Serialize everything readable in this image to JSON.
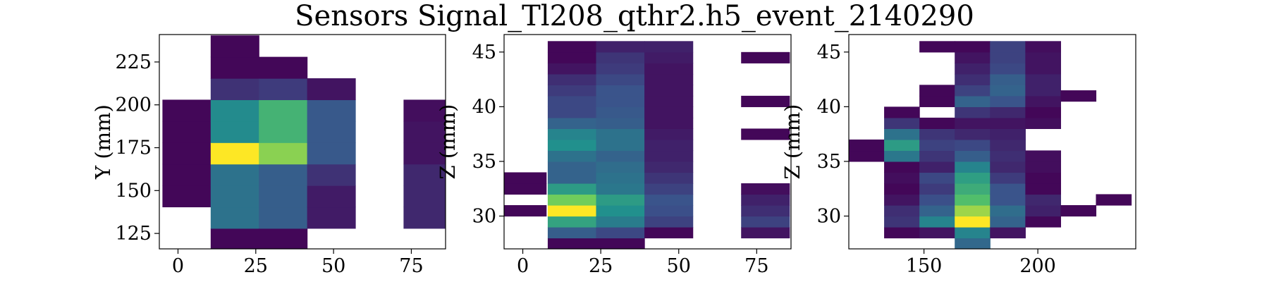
{
  "title": "Sensors Signal_Tl208_qthr2.h5_event_2140290",
  "colormap": [
    "#440154",
    "#3b528b",
    "#21908d",
    "#5dc963",
    "#fde725"
  ],
  "chart_data": [
    {
      "type": "heatmap",
      "xlabel": "",
      "ylabel": "Y (mm)",
      "xlim": [
        -6,
        86
      ],
      "ylim": [
        116,
        241
      ],
      "xticks": [
        0,
        25,
        50,
        75
      ],
      "yticks": [
        125,
        150,
        175,
        200,
        225
      ],
      "cell_w": 15.5,
      "cell_h": 12.5,
      "cells": [
        {
          "x": -5,
          "y": 140.5,
          "v": 0.02
        },
        {
          "x": -5,
          "y": 153,
          "v": 0.02
        },
        {
          "x": -5,
          "y": 165.5,
          "v": 0.02
        },
        {
          "x": -5,
          "y": 178,
          "v": 0.02
        },
        {
          "x": -5,
          "y": 190.5,
          "v": 0.02
        },
        {
          "x": 10.5,
          "y": 115.5,
          "v": 0.02
        },
        {
          "x": 10.5,
          "y": 128,
          "v": 0.38
        },
        {
          "x": 10.5,
          "y": 140.5,
          "v": 0.38
        },
        {
          "x": 10.5,
          "y": 153,
          "v": 0.38
        },
        {
          "x": 10.5,
          "y": 165.5,
          "v": 1.0
        },
        {
          "x": 10.5,
          "y": 178,
          "v": 0.48
        },
        {
          "x": 10.5,
          "y": 190.5,
          "v": 0.48
        },
        {
          "x": 10.5,
          "y": 203,
          "v": 0.15
        },
        {
          "x": 10.5,
          "y": 215.5,
          "v": 0.02
        },
        {
          "x": 10.5,
          "y": 228,
          "v": 0.02
        },
        {
          "x": 26,
          "y": 115.5,
          "v": 0.02
        },
        {
          "x": 26,
          "y": 128,
          "v": 0.3
        },
        {
          "x": 26,
          "y": 140.5,
          "v": 0.3
        },
        {
          "x": 26,
          "y": 153,
          "v": 0.3
        },
        {
          "x": 26,
          "y": 165.5,
          "v": 0.82
        },
        {
          "x": 26,
          "y": 178,
          "v": 0.65
        },
        {
          "x": 26,
          "y": 190.5,
          "v": 0.65
        },
        {
          "x": 26,
          "y": 203,
          "v": 0.18
        },
        {
          "x": 26,
          "y": 215.5,
          "v": 0.02
        },
        {
          "x": 41.5,
          "y": 128,
          "v": 0.08
        },
        {
          "x": 41.5,
          "y": 140.5,
          "v": 0.08
        },
        {
          "x": 41.5,
          "y": 153,
          "v": 0.15
        },
        {
          "x": 41.5,
          "y": 165.5,
          "v": 0.28
        },
        {
          "x": 41.5,
          "y": 178,
          "v": 0.28
        },
        {
          "x": 41.5,
          "y": 190.5,
          "v": 0.28
        },
        {
          "x": 41.5,
          "y": 203,
          "v": 0.06
        },
        {
          "x": 72.5,
          "y": 128,
          "v": 0.12
        },
        {
          "x": 72.5,
          "y": 140.5,
          "v": 0.12
        },
        {
          "x": 72.5,
          "y": 153,
          "v": 0.12
        },
        {
          "x": 72.5,
          "y": 165.5,
          "v": 0.06
        },
        {
          "x": 72.5,
          "y": 178,
          "v": 0.06
        },
        {
          "x": 72.5,
          "y": 190.5,
          "v": 0.04
        }
      ]
    },
    {
      "type": "heatmap",
      "xlabel": "",
      "ylabel": "Z (mm)",
      "xlim": [
        -6,
        86
      ],
      "ylim": [
        27,
        46.6
      ],
      "xticks": [
        0,
        25,
        50,
        75
      ],
      "yticks": [
        30,
        35,
        40,
        45
      ],
      "cell_w": 15.5,
      "cell_h": 1,
      "cells": [
        {
          "x": -8,
          "y": 30,
          "v": 0.02
        },
        {
          "x": -8,
          "y": 32,
          "v": 0.02
        },
        {
          "x": -8,
          "y": 33,
          "v": 0.02
        },
        {
          "x": 8,
          "y": 27,
          "v": 0.02
        },
        {
          "x": 8,
          "y": 28,
          "v": 0.3
        },
        {
          "x": 8,
          "y": 29,
          "v": 0.58
        },
        {
          "x": 8,
          "y": 30,
          "v": 1.0
        },
        {
          "x": 8,
          "y": 31,
          "v": 0.78
        },
        {
          "x": 8,
          "y": 32,
          "v": 0.55
        },
        {
          "x": 8,
          "y": 33,
          "v": 0.32
        },
        {
          "x": 8,
          "y": 34,
          "v": 0.32
        },
        {
          "x": 8,
          "y": 35,
          "v": 0.38
        },
        {
          "x": 8,
          "y": 36,
          "v": 0.5
        },
        {
          "x": 8,
          "y": 37,
          "v": 0.45
        },
        {
          "x": 8,
          "y": 38,
          "v": 0.32
        },
        {
          "x": 8,
          "y": 39,
          "v": 0.22
        },
        {
          "x": 8,
          "y": 40,
          "v": 0.22
        },
        {
          "x": 8,
          "y": 41,
          "v": 0.18
        },
        {
          "x": 8,
          "y": 42,
          "v": 0.14
        },
        {
          "x": 8,
          "y": 43,
          "v": 0.06
        },
        {
          "x": 8,
          "y": 44,
          "v": 0.02
        },
        {
          "x": 8,
          "y": 45,
          "v": 0.02
        },
        {
          "x": 23.5,
          "y": 27,
          "v": 0.02
        },
        {
          "x": 23.5,
          "y": 28,
          "v": 0.22
        },
        {
          "x": 23.5,
          "y": 29,
          "v": 0.42
        },
        {
          "x": 23.5,
          "y": 30,
          "v": 0.5
        },
        {
          "x": 23.5,
          "y": 31,
          "v": 0.55
        },
        {
          "x": 23.5,
          "y": 32,
          "v": 0.4
        },
        {
          "x": 23.5,
          "y": 33,
          "v": 0.38
        },
        {
          "x": 23.5,
          "y": 34,
          "v": 0.36
        },
        {
          "x": 23.5,
          "y": 35,
          "v": 0.32
        },
        {
          "x": 23.5,
          "y": 36,
          "v": 0.38
        },
        {
          "x": 23.5,
          "y": 37,
          "v": 0.38
        },
        {
          "x": 23.5,
          "y": 38,
          "v": 0.3
        },
        {
          "x": 23.5,
          "y": 39,
          "v": 0.28
        },
        {
          "x": 23.5,
          "y": 40,
          "v": 0.26
        },
        {
          "x": 23.5,
          "y": 41,
          "v": 0.26
        },
        {
          "x": 23.5,
          "y": 42,
          "v": 0.22
        },
        {
          "x": 23.5,
          "y": 43,
          "v": 0.18
        },
        {
          "x": 23.5,
          "y": 44,
          "v": 0.16
        },
        {
          "x": 23.5,
          "y": 45,
          "v": 0.1
        },
        {
          "x": 39,
          "y": 28,
          "v": 0.02
        },
        {
          "x": 39,
          "y": 29,
          "v": 0.2
        },
        {
          "x": 39,
          "y": 30,
          "v": 0.24
        },
        {
          "x": 39,
          "y": 31,
          "v": 0.26
        },
        {
          "x": 39,
          "y": 32,
          "v": 0.2
        },
        {
          "x": 39,
          "y": 33,
          "v": 0.16
        },
        {
          "x": 39,
          "y": 34,
          "v": 0.12
        },
        {
          "x": 39,
          "y": 35,
          "v": 0.1
        },
        {
          "x": 39,
          "y": 36,
          "v": 0.1
        },
        {
          "x": 39,
          "y": 37,
          "v": 0.08
        },
        {
          "x": 39,
          "y": 38,
          "v": 0.06
        },
        {
          "x": 39,
          "y": 39,
          "v": 0.06
        },
        {
          "x": 39,
          "y": 40,
          "v": 0.06
        },
        {
          "x": 39,
          "y": 41,
          "v": 0.06
        },
        {
          "x": 39,
          "y": 42,
          "v": 0.06
        },
        {
          "x": 39,
          "y": 43,
          "v": 0.06
        },
        {
          "x": 39,
          "y": 44,
          "v": 0.08
        },
        {
          "x": 39,
          "y": 45,
          "v": 0.1
        },
        {
          "x": 70,
          "y": 28,
          "v": 0.06
        },
        {
          "x": 70,
          "y": 29,
          "v": 0.2
        },
        {
          "x": 70,
          "y": 30,
          "v": 0.14
        },
        {
          "x": 70,
          "y": 31,
          "v": 0.1
        },
        {
          "x": 70,
          "y": 32,
          "v": 0.04
        },
        {
          "x": 70,
          "y": 37,
          "v": 0.02
        },
        {
          "x": 70,
          "y": 40,
          "v": 0.02
        },
        {
          "x": 70,
          "y": 44,
          "v": 0.02
        }
      ]
    },
    {
      "type": "heatmap",
      "xlabel": "",
      "ylabel": "Z (mm)",
      "xlim": [
        117,
        243
      ],
      "ylim": [
        27,
        46.6
      ],
      "xticks": [
        150,
        200
      ],
      "yticks": [
        30,
        35,
        40,
        45
      ],
      "cell_w": 15.5,
      "cell_h": 1,
      "cells": [
        {
          "x": 117,
          "y": 35,
          "v": 0.02
        },
        {
          "x": 117,
          "y": 36,
          "v": 0.02
        },
        {
          "x": 132.5,
          "y": 28,
          "v": 0.02
        },
        {
          "x": 132.5,
          "y": 29,
          "v": 0.16
        },
        {
          "x": 132.5,
          "y": 30,
          "v": 0.14
        },
        {
          "x": 132.5,
          "y": 31,
          "v": 0.06
        },
        {
          "x": 132.5,
          "y": 32,
          "v": 0.02
        },
        {
          "x": 132.5,
          "y": 33,
          "v": 0.04
        },
        {
          "x": 132.5,
          "y": 34,
          "v": 0.02
        },
        {
          "x": 132.5,
          "y": 35,
          "v": 0.4
        },
        {
          "x": 132.5,
          "y": 36,
          "v": 0.55
        },
        {
          "x": 132.5,
          "y": 37,
          "v": 0.38
        },
        {
          "x": 132.5,
          "y": 38,
          "v": 0.16
        },
        {
          "x": 132.5,
          "y": 39,
          "v": 0.02
        },
        {
          "x": 148,
          "y": 28,
          "v": 0.06
        },
        {
          "x": 148,
          "y": 29,
          "v": 0.45
        },
        {
          "x": 148,
          "y": 30,
          "v": 0.32
        },
        {
          "x": 148,
          "y": 31,
          "v": 0.24
        },
        {
          "x": 148,
          "y": 32,
          "v": 0.18
        },
        {
          "x": 148,
          "y": 33,
          "v": 0.22
        },
        {
          "x": 148,
          "y": 34,
          "v": 0.1
        },
        {
          "x": 148,
          "y": 35,
          "v": 0.16
        },
        {
          "x": 148,
          "y": 36,
          "v": 0.2
        },
        {
          "x": 148,
          "y": 37,
          "v": 0.16
        },
        {
          "x": 148,
          "y": 38,
          "v": 0.02
        },
        {
          "x": 148,
          "y": 40,
          "v": 0.02
        },
        {
          "x": 148,
          "y": 41,
          "v": 0.02
        },
        {
          "x": 148,
          "y": 45,
          "v": 0.02
        },
        {
          "x": 163.5,
          "y": 26,
          "v": 0.02
        },
        {
          "x": 163.5,
          "y": 27,
          "v": 0.34
        },
        {
          "x": 163.5,
          "y": 28,
          "v": 0.45
        },
        {
          "x": 163.5,
          "y": 29,
          "v": 1.0
        },
        {
          "x": 163.5,
          "y": 30,
          "v": 0.85
        },
        {
          "x": 163.5,
          "y": 31,
          "v": 0.7
        },
        {
          "x": 163.5,
          "y": 32,
          "v": 0.62
        },
        {
          "x": 163.5,
          "y": 33,
          "v": 0.56
        },
        {
          "x": 163.5,
          "y": 34,
          "v": 0.45
        },
        {
          "x": 163.5,
          "y": 35,
          "v": 0.3
        },
        {
          "x": 163.5,
          "y": 36,
          "v": 0.22
        },
        {
          "x": 163.5,
          "y": 37,
          "v": 0.12
        },
        {
          "x": 163.5,
          "y": 38,
          "v": 0.06
        },
        {
          "x": 163.5,
          "y": 39,
          "v": 0.16
        },
        {
          "x": 163.5,
          "y": 40,
          "v": 0.32
        },
        {
          "x": 163.5,
          "y": 41,
          "v": 0.2
        },
        {
          "x": 163.5,
          "y": 42,
          "v": 0.14
        },
        {
          "x": 163.5,
          "y": 43,
          "v": 0.1
        },
        {
          "x": 163.5,
          "y": 44,
          "v": 0.06
        },
        {
          "x": 163.5,
          "y": 45,
          "v": 0.02
        },
        {
          "x": 179,
          "y": 28,
          "v": 0.06
        },
        {
          "x": 179,
          "y": 29,
          "v": 0.32
        },
        {
          "x": 179,
          "y": 30,
          "v": 0.36
        },
        {
          "x": 179,
          "y": 31,
          "v": 0.26
        },
        {
          "x": 179,
          "y": 32,
          "v": 0.26
        },
        {
          "x": 179,
          "y": 33,
          "v": 0.18
        },
        {
          "x": 179,
          "y": 34,
          "v": 0.12
        },
        {
          "x": 179,
          "y": 35,
          "v": 0.14
        },
        {
          "x": 179,
          "y": 36,
          "v": 0.12
        },
        {
          "x": 179,
          "y": 37,
          "v": 0.1
        },
        {
          "x": 179,
          "y": 38,
          "v": 0.06
        },
        {
          "x": 179,
          "y": 39,
          "v": 0.12
        },
        {
          "x": 179,
          "y": 40,
          "v": 0.26
        },
        {
          "x": 179,
          "y": 41,
          "v": 0.32
        },
        {
          "x": 179,
          "y": 42,
          "v": 0.3
        },
        {
          "x": 179,
          "y": 43,
          "v": 0.22
        },
        {
          "x": 179,
          "y": 44,
          "v": 0.2
        },
        {
          "x": 179,
          "y": 45,
          "v": 0.2
        },
        {
          "x": 194.5,
          "y": 29,
          "v": 0.02
        },
        {
          "x": 194.5,
          "y": 30,
          "v": 0.1
        },
        {
          "x": 194.5,
          "y": 31,
          "v": 0.12
        },
        {
          "x": 194.5,
          "y": 32,
          "v": 0.02
        },
        {
          "x": 194.5,
          "y": 33,
          "v": 0.02
        },
        {
          "x": 194.5,
          "y": 34,
          "v": 0.04
        },
        {
          "x": 194.5,
          "y": 35,
          "v": 0.04
        },
        {
          "x": 194.5,
          "y": 38,
          "v": 0.04
        },
        {
          "x": 194.5,
          "y": 39,
          "v": 0.02
        },
        {
          "x": 194.5,
          "y": 40,
          "v": 0.06
        },
        {
          "x": 194.5,
          "y": 41,
          "v": 0.1
        },
        {
          "x": 194.5,
          "y": 42,
          "v": 0.1
        },
        {
          "x": 194.5,
          "y": 43,
          "v": 0.06
        },
        {
          "x": 194.5,
          "y": 44,
          "v": 0.06
        },
        {
          "x": 194.5,
          "y": 45,
          "v": 0.04
        },
        {
          "x": 210,
          "y": 30,
          "v": 0.02
        },
        {
          "x": 210,
          "y": 40.5,
          "v": 0.02
        },
        {
          "x": 225.5,
          "y": 31,
          "v": 0.02
        }
      ]
    }
  ]
}
